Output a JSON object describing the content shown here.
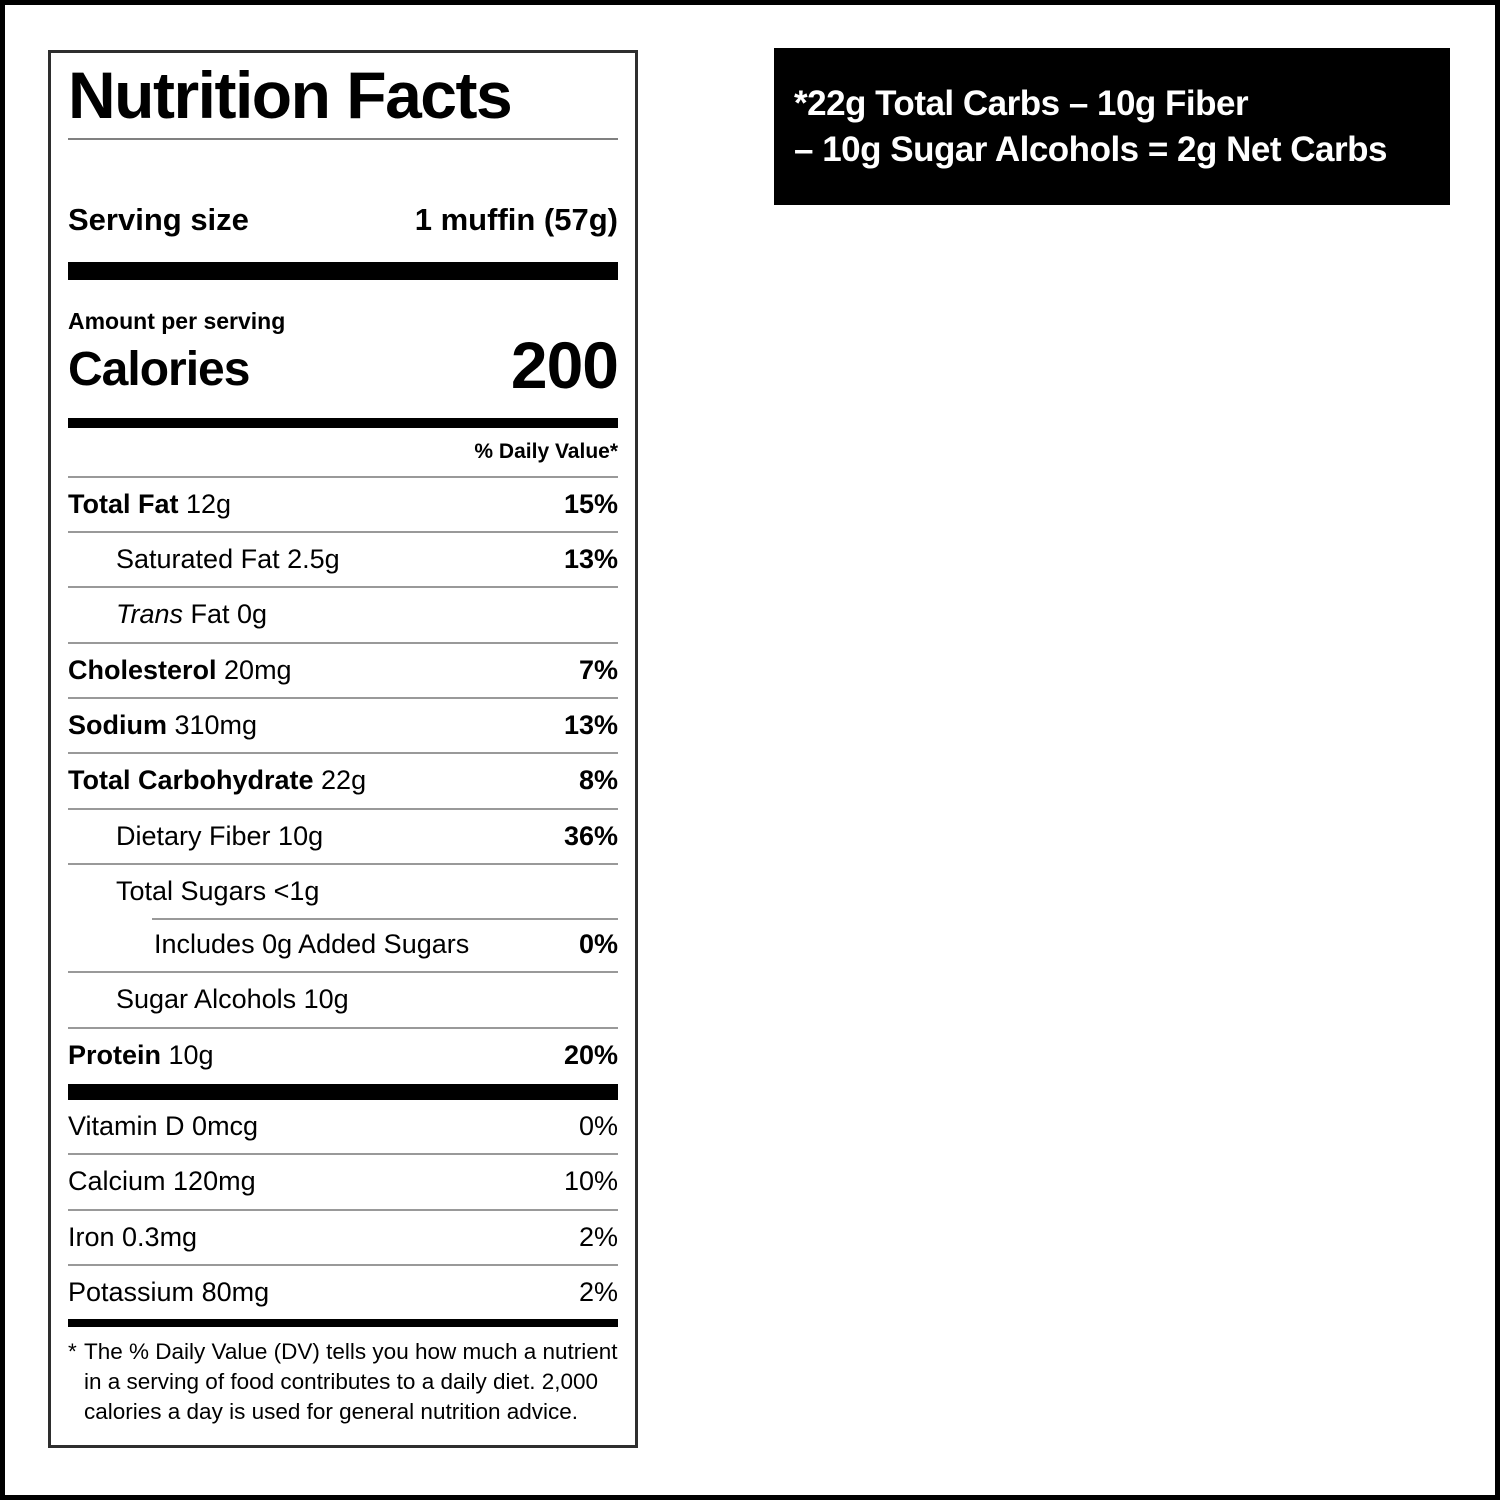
{
  "colors": {
    "text": "#000000",
    "background": "#ffffff",
    "hairline": "#999999",
    "label_border": "#2e2e2e",
    "badge_bg": "#000000",
    "badge_fg": "#ffffff"
  },
  "badge": {
    "line1": "*22g Total Carbs – 10g Fiber",
    "line2": "– 10g Sugar Alcohols = 2g Net Carbs"
  },
  "label": {
    "title": "Nutrition Facts",
    "serving_label": "Serving size",
    "serving_value": "1 muffin (57g)",
    "amount_per_serving": "Amount per serving",
    "calories_label": "Calories",
    "calories_value": "200",
    "dv_header": "% Daily Value*",
    "nutrients": [
      {
        "name": "Total Fat",
        "bold": true,
        "amount": "12g",
        "dv": "15%",
        "dv_bold": true,
        "indent": 0
      },
      {
        "name": "Saturated Fat",
        "amount": "2.5g",
        "dv": "13%",
        "dv_bold": true,
        "indent": 1
      },
      {
        "name": "Trans",
        "italic": true,
        "amount": "Fat 0g",
        "dv": "",
        "indent": 1
      },
      {
        "name": "Cholesterol",
        "bold": true,
        "amount": "20mg",
        "dv": "7%",
        "dv_bold": true,
        "indent": 0
      },
      {
        "name": "Sodium",
        "bold": true,
        "amount": "310mg",
        "dv": "13%",
        "dv_bold": true,
        "indent": 0
      },
      {
        "name": "Total Carbohydrate",
        "bold": true,
        "amount": "22g",
        "dv": "8%",
        "dv_bold": true,
        "indent": 0
      },
      {
        "name": "Dietary Fiber",
        "amount": "10g",
        "dv": "36%",
        "dv_bold": true,
        "indent": 1
      },
      {
        "name": "Total Sugars",
        "amount": "<1g",
        "dv": "",
        "indent": 1
      },
      {
        "name": "Includes 0g Added Sugars",
        "amount": "",
        "dv": "0%",
        "dv_bold": true,
        "indent": 2,
        "rule": "partial"
      },
      {
        "name": "Sugar Alcohols",
        "amount": "10g",
        "dv": "",
        "indent": 1
      },
      {
        "name": "Protein",
        "bold": true,
        "amount": "10g",
        "dv": "20%",
        "dv_bold": true,
        "indent": 0
      }
    ],
    "vitamins": [
      {
        "name": "Vitamin D",
        "amount": "0mcg",
        "dv": "0%"
      },
      {
        "name": "Calcium",
        "amount": "120mg",
        "dv": "10%"
      },
      {
        "name": "Iron",
        "amount": "0.3mg",
        "dv": "2%"
      },
      {
        "name": "Potassium",
        "amount": "80mg",
        "dv": "2%"
      }
    ],
    "footnote_star": "*",
    "footnote": "The % Daily Value (DV) tells you how much a nutrient in a serving of food contributes to a daily diet. 2,000 calories a day is used for general nutrition advice."
  }
}
